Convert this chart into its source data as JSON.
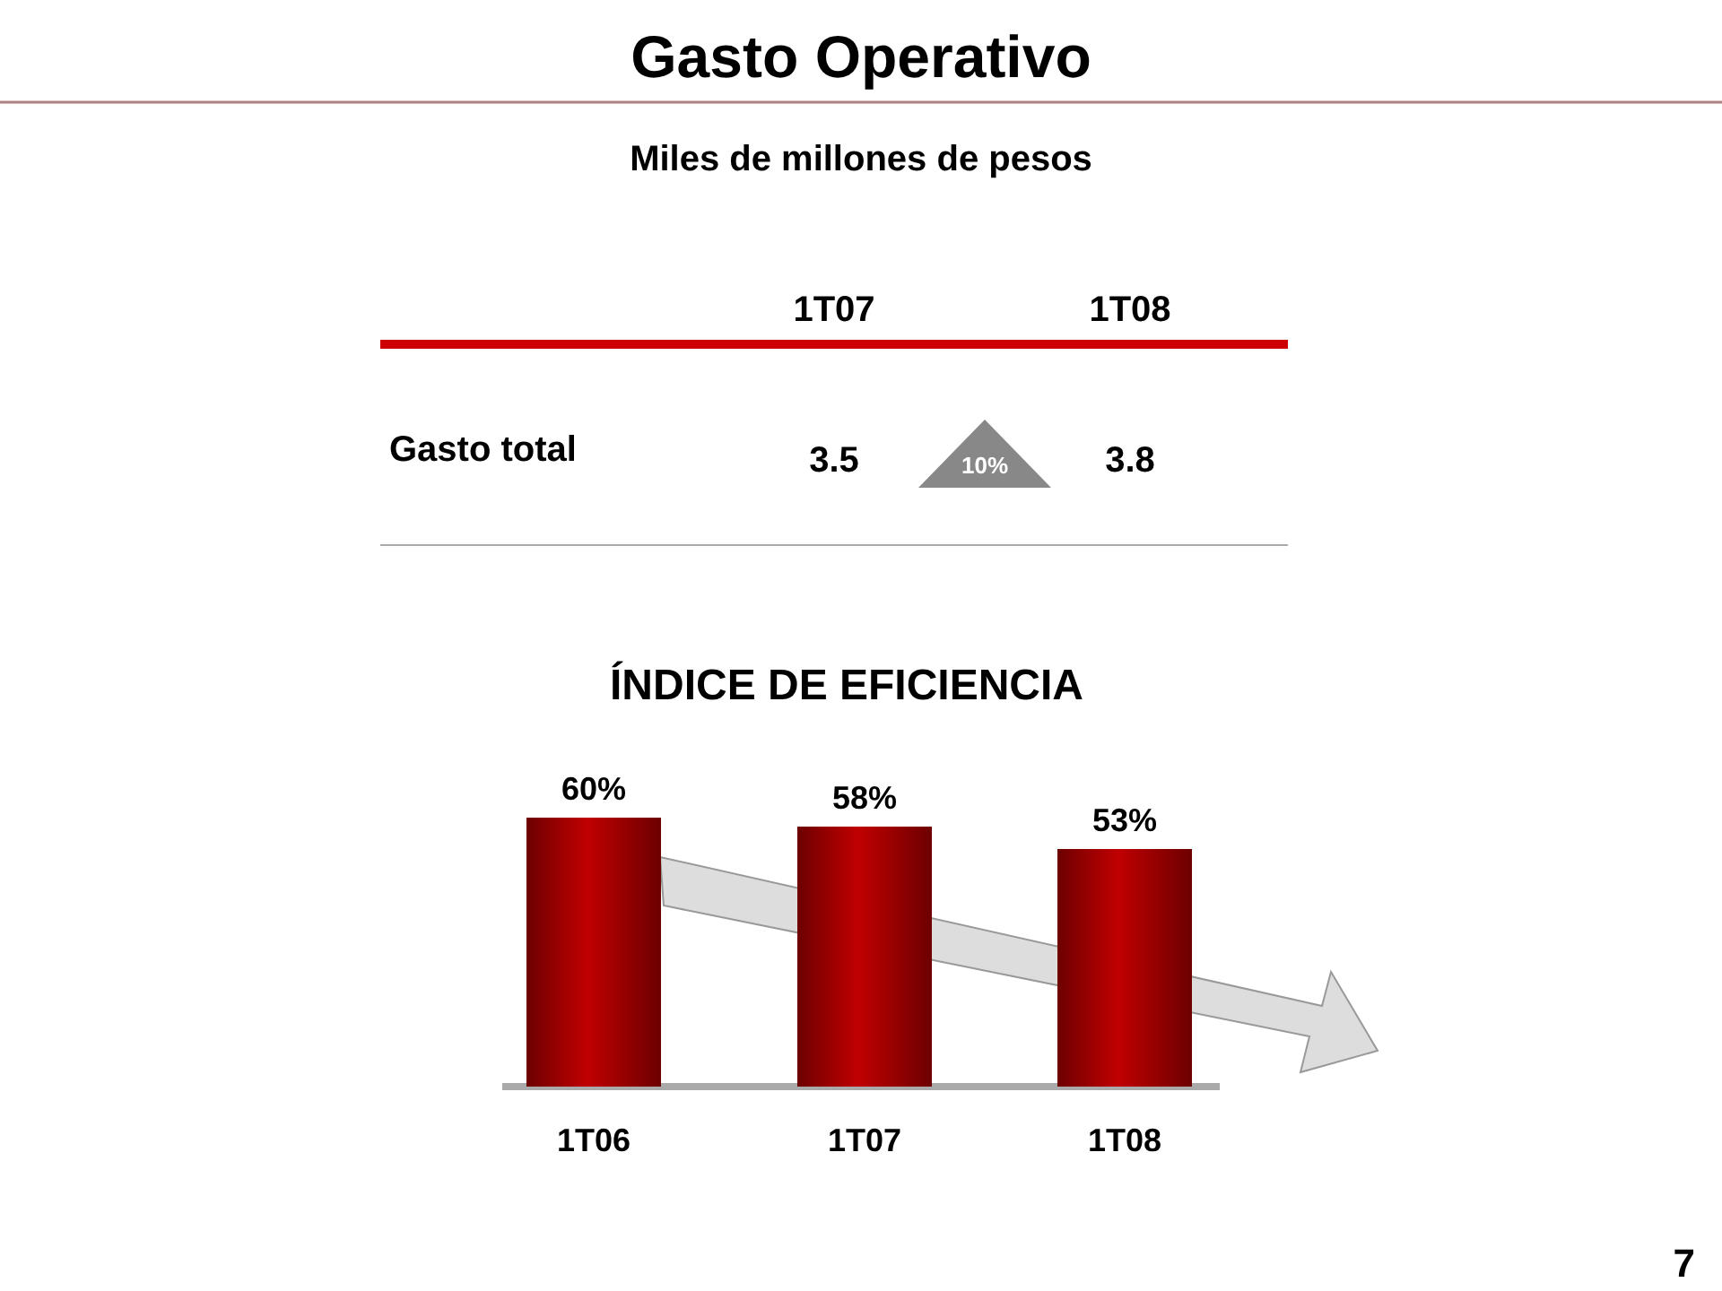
{
  "chart_data": [
    {
      "type": "other",
      "title": "Gasto Operativo",
      "subtitle": "Miles de millones de pesos",
      "categories": [
        "1T07",
        "1T08"
      ],
      "values": [
        3.5,
        3.8
      ],
      "data_labels": true,
      "annotations": [
        "Gasto total",
        "10%",
        "7"
      ]
    },
    {
      "type": "bar",
      "title": "ÍNDICE DE EFICIENCIA",
      "categories": [
        "1T06",
        "1T07",
        "1T08"
      ],
      "values": [
        60,
        58,
        53
      ],
      "color": "#c00000",
      "data_labels": true,
      "value_labels": [
        "60%",
        "58%",
        "53%"
      ]
    }
  ]
}
